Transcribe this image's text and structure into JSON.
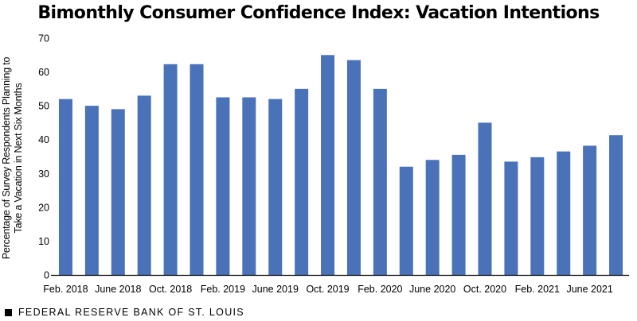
{
  "chart_data": {
    "type": "bar",
    "title": "Bimonthly Consumer Confidence Index: Vacation Intentions",
    "xlabel": "",
    "ylabel": "Percentage of Survey Respondents Planning to Take a Vacation in Next Six Months",
    "ylabel_lines": [
      "Percentage of Survey Respondents Planning to",
      "Take a Vacation in Next Six Months"
    ],
    "ylim": [
      0,
      70
    ],
    "yticks": [
      0,
      10,
      20,
      30,
      40,
      50,
      60,
      70
    ],
    "grid": false,
    "bar_color": "#4a72b8",
    "categories": [
      "Feb. 2018",
      "Apr. 2018",
      "June 2018",
      "Aug. 2018",
      "Oct. 2018",
      "Dec. 2018",
      "Feb. 2019",
      "Apr. 2019",
      "June 2019",
      "Aug. 2019",
      "Oct. 2019",
      "Dec. 2019",
      "Feb. 2020",
      "Apr. 2020",
      "June 2020",
      "Aug. 2020",
      "Oct. 2020",
      "Dec. 2020",
      "Feb. 2021",
      "Apr. 2021",
      "June 2021",
      "Aug. 2021"
    ],
    "x_tick_labels": [
      "Feb. 2018",
      "June 2018",
      "Oct. 2018",
      "Feb. 2019",
      "June 2019",
      "Oct. 2019",
      "Feb. 2020",
      "June 2020",
      "Oct. 2020",
      "Feb. 2021",
      "June 2021"
    ],
    "values": [
      52,
      50,
      49,
      53,
      62.3,
      62.3,
      52.5,
      52.5,
      52,
      55,
      65,
      63.5,
      55,
      32,
      34,
      35.5,
      45,
      33.5,
      34.8,
      36.5,
      38.2,
      41.3
    ]
  },
  "footer": {
    "source": "FEDERAL RESERVE BANK OF ST. LOUIS"
  }
}
